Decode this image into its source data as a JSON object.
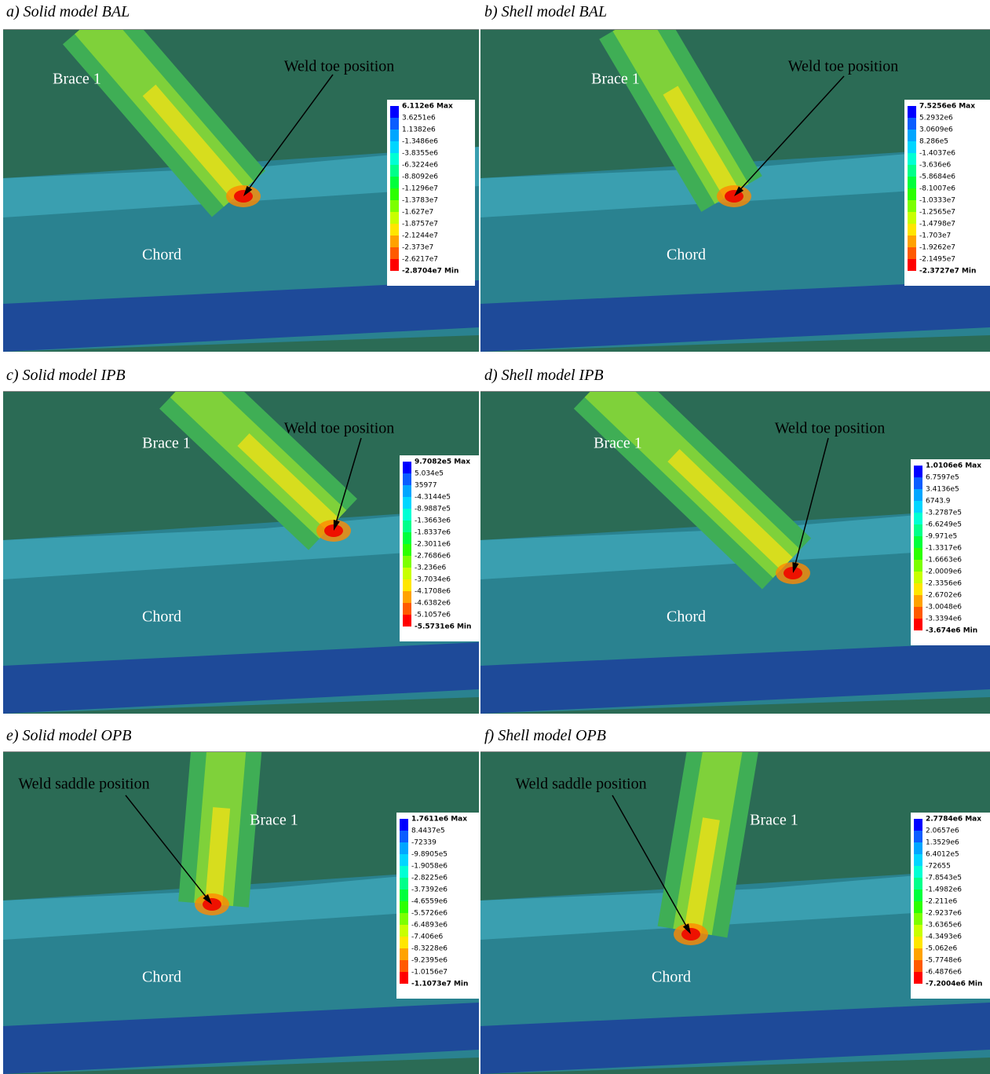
{
  "panels": [
    {
      "caption": "a) Solid model BAL",
      "labels": [
        "Brace 1",
        "Weld toe position",
        "Chord"
      ],
      "legend": [
        "6.112e6 Max",
        "3.6251e6",
        "1.1382e6",
        "-1.3486e6",
        "-3.8355e6",
        "-6.3224e6",
        "-8.8092e6",
        "-1.1296e7",
        "-1.3783e7",
        "-1.627e7",
        "-1.8757e7",
        "-2.1244e7",
        "-2.373e7",
        "-2.6217e7",
        "-2.8704e7 Min"
      ]
    },
    {
      "caption": "b) Shell model BAL",
      "labels": [
        "Brace 1",
        "Weld toe position",
        "Chord"
      ],
      "legend": [
        "7.5256e6 Max",
        "5.2932e6",
        "3.0609e6",
        "8.286e5",
        "-1.4037e6",
        "-3.636e6",
        "-5.8684e6",
        "-8.1007e6",
        "-1.0333e7",
        "-1.2565e7",
        "-1.4798e7",
        "-1.703e7",
        "-1.9262e7",
        "-2.1495e7",
        "-2.3727e7 Min"
      ]
    },
    {
      "caption": "c) Solid model IPB",
      "labels": [
        "Brace 1",
        "Weld toe position",
        "Chord"
      ],
      "legend": [
        "9.7082e5 Max",
        "5.034e5",
        "35977",
        "-4.3144e5",
        "-8.9887e5",
        "-1.3663e6",
        "-1.8337e6",
        "-2.3011e6",
        "-2.7686e6",
        "-3.236e6",
        "-3.7034e6",
        "-4.1708e6",
        "-4.6382e6",
        "-5.1057e6",
        "-5.5731e6 Min"
      ]
    },
    {
      "caption": "d) Shell model IPB",
      "labels": [
        "Brace 1",
        "Weld toe position",
        "Chord"
      ],
      "legend": [
        "1.0106e6 Max",
        "6.7597e5",
        "3.4136e5",
        "6743.9",
        "-3.2787e5",
        "-6.6249e5",
        "-9.971e5",
        "-1.3317e6",
        "-1.6663e6",
        "-2.0009e6",
        "-2.3356e6",
        "-2.6702e6",
        "-3.0048e6",
        "-3.3394e6",
        "-3.674e6 Min"
      ]
    },
    {
      "caption": "e) Solid model OPB",
      "labels": [
        "Weld saddle position",
        "Brace 1",
        "Chord"
      ],
      "legend": [
        "1.7611e6 Max",
        "8.4437e5",
        "-72339",
        "-9.8905e5",
        "-1.9058e6",
        "-2.8225e6",
        "-3.7392e6",
        "-4.6559e6",
        "-5.5726e6",
        "-6.4893e6",
        "-7.406e6",
        "-8.3228e6",
        "-9.2395e6",
        "-1.0156e7",
        "-1.1073e7 Min"
      ]
    },
    {
      "caption": "f) Shell model OPB",
      "labels": [
        "Weld saddle position",
        "Brace 1",
        "Chord"
      ],
      "legend": [
        "2.7784e6 Max",
        "2.0657e6",
        "1.3529e6",
        "6.4012e5",
        "-72655",
        "-7.8543e5",
        "-1.4982e6",
        "-2.211e6",
        "-2.9237e6",
        "-3.6365e6",
        "-4.3493e6",
        "-5.062e6",
        "-5.7748e6",
        "-6.4876e6",
        "-7.2004e6 Min"
      ]
    }
  ]
}
